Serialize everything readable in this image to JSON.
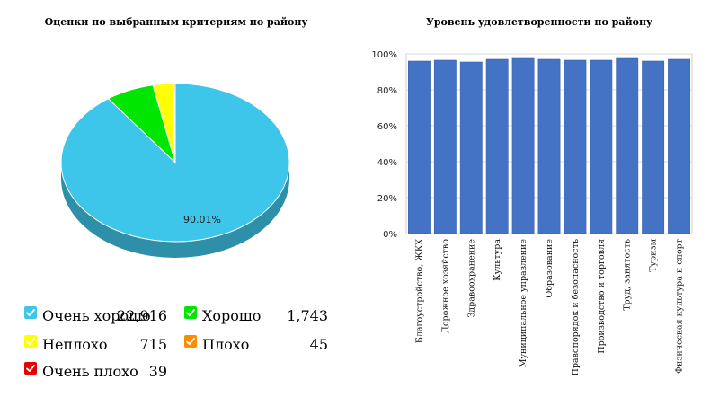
{
  "chart_data": [
    {
      "type": "pie",
      "title": "Оценки по выбранным критериям по району",
      "slices": [
        {
          "label": "Очень хорошо",
          "value": 22916,
          "display": "22,916",
          "color": "#3ec6ea"
        },
        {
          "label": "Хорошо",
          "value": 1743,
          "display": "1,743",
          "color": "#00e600"
        },
        {
          "label": "Неплохо",
          "value": 715,
          "display": "715",
          "color": "#ffff00"
        },
        {
          "label": "Плохо",
          "value": 45,
          "display": "45",
          "color": "#ff8c00"
        },
        {
          "label": "Очень плохо",
          "value": 39,
          "display": "39",
          "color": "#e60000"
        }
      ],
      "data_label": "90.01%"
    },
    {
      "type": "bar",
      "title": "Уровень удовлетворенности по району",
      "categories": [
        "Благоустройство, ЖКХ",
        "Дорожное хозяйство",
        "Здравоохранение",
        "Культура",
        "Муниципальное управление",
        "Образование",
        "Правопорядок и безопасность",
        "Производство и торговля",
        "Труд, занятость",
        "Туризм",
        "Физическая культура и спорт"
      ],
      "values": [
        96,
        96.5,
        95.5,
        97,
        97.5,
        97,
        96.5,
        96.5,
        97.5,
        96,
        97
      ],
      "ylim": [
        0,
        100
      ],
      "yticks": [
        "0%",
        "20%",
        "40%",
        "60%",
        "80%",
        "100%"
      ],
      "bar_color": "#4472c4",
      "grid": true
    }
  ]
}
